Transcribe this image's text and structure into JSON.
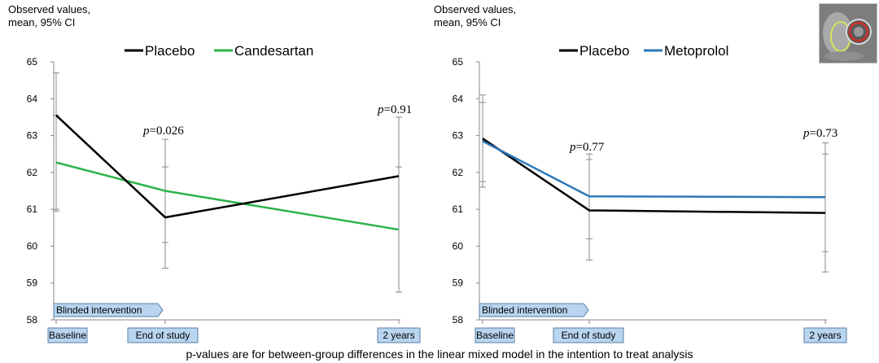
{
  "footnote": "p-values are for between-group differences in the linear mixed model in the intention to treat analysis",
  "chart_data": [
    {
      "type": "line",
      "ylabel": "Observed values, mean, 95% CI",
      "ylabel_lines": [
        "Observed values,",
        "mean, 95% CI"
      ],
      "ylim": [
        58,
        65
      ],
      "yticks": [
        "58",
        "59",
        "60",
        "61",
        "62",
        "63",
        "64",
        "65"
      ],
      "categories": [
        "Baseline",
        "End of study",
        "2 years"
      ],
      "intervention_label": "Blinded intervention",
      "legend_position": "top",
      "series": [
        {
          "name": "Placebo",
          "color": "#000000",
          "values": [
            63.55,
            60.78,
            61.9
          ],
          "ci_low": [
            61.0,
            60.1,
            58.75
          ],
          "ci_high": [
            64.7,
            62.15,
            63.5
          ]
        },
        {
          "name": "Candesartan",
          "color": "#2db34a",
          "values": [
            62.27,
            61.5,
            60.45
          ],
          "ci_low": [
            60.95,
            59.4,
            58.75
          ],
          "ci_high": [
            63.55,
            62.9,
            62.15
          ]
        }
      ],
      "pvalues": [
        {
          "category": "End of study",
          "text": "p=0.026"
        },
        {
          "category": "2 years",
          "text": "p=0.91"
        }
      ]
    },
    {
      "type": "line",
      "ylabel": "Observed values, mean, 95% CI",
      "ylabel_lines": [
        "Observed values,",
        "mean, 95% CI"
      ],
      "ylim": [
        58,
        65
      ],
      "yticks": [
        "58",
        "59",
        "60",
        "61",
        "62",
        "63",
        "64",
        "65"
      ],
      "categories": [
        "Baseline",
        "End of study",
        "2 years"
      ],
      "intervention_label": "Blinded intervention",
      "legend_position": "top",
      "series": [
        {
          "name": "Placebo",
          "color": "#000000",
          "values": [
            62.92,
            60.97,
            60.9
          ],
          "ci_low": [
            61.75,
            59.62,
            59.3
          ],
          "ci_high": [
            64.1,
            62.35,
            62.5
          ]
        },
        {
          "name": "Metoprolol",
          "color": "#2b78b8",
          "values": [
            62.85,
            61.35,
            61.33
          ],
          "ci_low": [
            61.6,
            60.2,
            59.85
          ],
          "ci_high": [
            63.9,
            62.5,
            62.8
          ]
        }
      ],
      "pvalues": [
        {
          "category": "End of study",
          "text": "p=0.77"
        },
        {
          "category": "2 years",
          "text": "p=0.73"
        }
      ]
    }
  ]
}
